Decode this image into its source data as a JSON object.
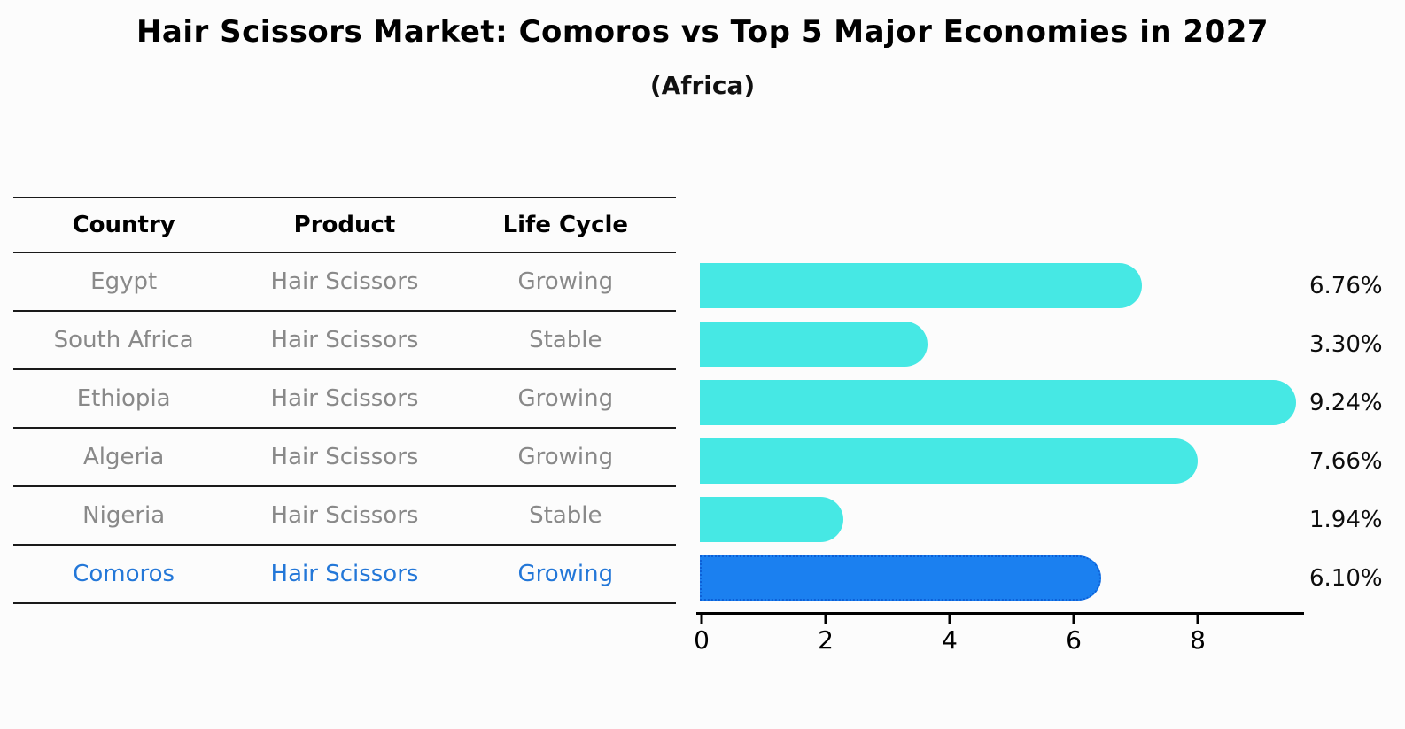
{
  "title": "Hair Scissors Market: Comoros vs Top 5 Major Economies in 2027",
  "subtitle": "(Africa)",
  "table": {
    "headers": [
      "Country",
      "Product",
      "Life Cycle"
    ],
    "rows": [
      {
        "country": "Egypt",
        "product": "Hair Scissors",
        "life_cycle": "Growing",
        "highlight": false
      },
      {
        "country": "South Africa",
        "product": "Hair Scissors",
        "life_cycle": "Stable",
        "highlight": false
      },
      {
        "country": "Ethiopia",
        "product": "Hair Scissors",
        "life_cycle": "Growing",
        "highlight": false
      },
      {
        "country": "Algeria",
        "product": "Hair Scissors",
        "life_cycle": "Growing",
        "highlight": false
      },
      {
        "country": "Nigeria",
        "product": "Hair Scissors",
        "life_cycle": "Stable",
        "highlight": false
      },
      {
        "country": "Comoros",
        "product": "Hair Scissors",
        "life_cycle": "Growing",
        "highlight": true
      }
    ]
  },
  "chart_data": {
    "type": "bar",
    "orientation": "horizontal",
    "title": "Hair Scissors Market: Comoros vs Top 5 Major Economies in 2027",
    "subtitle": "(Africa)",
    "categories": [
      "Egypt",
      "South Africa",
      "Ethiopia",
      "Algeria",
      "Nigeria",
      "Comoros"
    ],
    "values": [
      6.76,
      3.3,
      9.24,
      7.66,
      1.94,
      6.1
    ],
    "value_labels": [
      "6.76%",
      "3.30%",
      "9.24%",
      "7.66%",
      "1.94%",
      "6.10%"
    ],
    "xlabel": "",
    "ylabel": "",
    "xlim": [
      0,
      9.7
    ],
    "x_ticks": [
      0,
      2,
      4,
      6,
      8
    ],
    "grid": false,
    "legend": false,
    "highlight_category": "Comoros",
    "colors": {
      "bar": "#46e8e4",
      "highlight_bar": "#1b80f0",
      "highlight_bar_border": "#0d5fd6",
      "row_text": "#898989",
      "highlight_row_text": "#2377d8",
      "axis": "#000000"
    }
  }
}
